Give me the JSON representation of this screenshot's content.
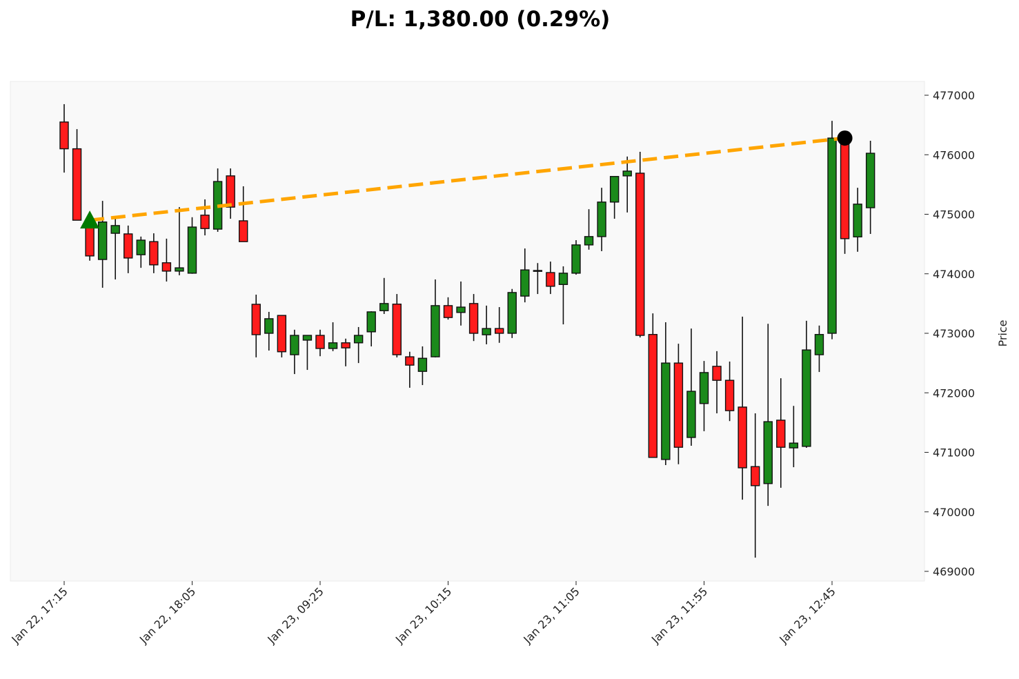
{
  "chart_data": {
    "type": "candlestick",
    "title": "P/L: 1,380.00 (0.29%)",
    "ylabel": "Price",
    "xlabel": "",
    "ylim": [
      469000,
      477000
    ],
    "yticks": [
      "469000",
      "470000",
      "471000",
      "472000",
      "473000",
      "474000",
      "475000",
      "476000",
      "477000"
    ],
    "xtick_labels": [
      {
        "index": 0,
        "label": "Jan 22, 17:15"
      },
      {
        "index": 10,
        "label": "Jan 22, 18:05"
      },
      {
        "index": 20,
        "label": "Jan 23, 09:25"
      },
      {
        "index": 30,
        "label": "Jan 23, 10:15"
      },
      {
        "index": 40,
        "label": "Jan 23, 11:05"
      },
      {
        "index": 50,
        "label": "Jan 23, 11:55"
      },
      {
        "index": 60,
        "label": "Jan 23, 12:45"
      }
    ],
    "ohlc_fields": [
      "open",
      "high",
      "low",
      "close"
    ],
    "candles": [
      [
        476550,
        476850,
        475700,
        476100
      ],
      [
        476100,
        476430,
        474900,
        474900
      ],
      [
        474850,
        474950,
        474220,
        474300
      ],
      [
        474240,
        475225,
        473765,
        474870
      ],
      [
        474680,
        474925,
        473905,
        474810
      ],
      [
        474670,
        474810,
        474010,
        474265
      ],
      [
        474320,
        474625,
        474100,
        474565
      ],
      [
        474540,
        474680,
        474010,
        474150
      ],
      [
        474185,
        474590,
        473870,
        474045
      ],
      [
        474045,
        475120,
        473975,
        474100
      ],
      [
        474010,
        474950,
        474000,
        474785
      ],
      [
        474985,
        475250,
        474645,
        474760
      ],
      [
        474750,
        475770,
        474705,
        475550
      ],
      [
        475645,
        475770,
        474925,
        475120
      ],
      [
        474890,
        475470,
        474540,
        474540
      ],
      [
        473487,
        473650,
        472595,
        472977
      ],
      [
        473000,
        473360,
        472710,
        473245
      ],
      [
        473300,
        473300,
        472595,
        472690
      ],
      [
        472640,
        473060,
        472315,
        472965
      ],
      [
        472885,
        472965,
        472385,
        472965
      ],
      [
        472965,
        473060,
        472615,
        472745
      ],
      [
        472745,
        473185,
        472700,
        472840
      ],
      [
        472840,
        472910,
        472445,
        472755
      ],
      [
        472840,
        473105,
        472500,
        472965
      ],
      [
        473025,
        473370,
        472780,
        473360
      ],
      [
        473380,
        473930,
        473325,
        473500
      ],
      [
        473490,
        473660,
        472595,
        472640
      ],
      [
        472605,
        472690,
        472085,
        472465
      ],
      [
        472360,
        472780,
        472130,
        472580
      ],
      [
        472605,
        473905,
        472595,
        473465
      ],
      [
        473465,
        473605,
        473230,
        473265
      ],
      [
        473350,
        473870,
        473130,
        473440
      ],
      [
        473500,
        473660,
        472870,
        473000
      ],
      [
        472975,
        473465,
        472815,
        473080
      ],
      [
        473080,
        473440,
        472840,
        473000
      ],
      [
        473000,
        473745,
        472920,
        473685
      ],
      [
        473625,
        474425,
        473520,
        474065
      ],
      [
        474055,
        474180,
        473660,
        474055
      ],
      [
        474020,
        474205,
        473660,
        473790
      ],
      [
        473820,
        474125,
        473150,
        474010
      ],
      [
        474010,
        474565,
        473985,
        474485
      ],
      [
        474485,
        475085,
        474405,
        474625
      ],
      [
        474625,
        475445,
        474380,
        475205
      ],
      [
        475205,
        475635,
        474925,
        475635
      ],
      [
        475645,
        475970,
        475030,
        475725
      ],
      [
        475690,
        476050,
        472930,
        472965
      ],
      [
        472980,
        473335,
        470915,
        470915
      ],
      [
        470880,
        473185,
        470785,
        472500
      ],
      [
        472500,
        472825,
        470800,
        471085
      ],
      [
        471250,
        473080,
        471110,
        472025
      ],
      [
        471820,
        472535,
        471355,
        472340
      ],
      [
        472445,
        472700,
        471655,
        472210
      ],
      [
        472210,
        472525,
        471525,
        471700
      ],
      [
        471760,
        473280,
        470205,
        470740
      ],
      [
        470760,
        471655,
        469230,
        470440
      ],
      [
        470475,
        473160,
        470100,
        471515
      ],
      [
        471540,
        472245,
        470405,
        471085
      ],
      [
        471075,
        471780,
        470750,
        471155
      ],
      [
        471100,
        473210,
        471075,
        472720
      ],
      [
        472640,
        473130,
        472350,
        472980
      ],
      [
        473000,
        476570,
        472900,
        476280
      ],
      [
        476280,
        476350,
        474335,
        474590
      ],
      [
        474620,
        475445,
        474370,
        475170
      ],
      [
        475110,
        476235,
        474670,
        476025
      ]
    ],
    "entry": {
      "index": 2,
      "price": 474900,
      "marker": "triangle-up"
    },
    "exit": {
      "index": 61,
      "price": 476280,
      "marker": "circle"
    },
    "trade_line": {
      "style": "dashed"
    },
    "grid": false,
    "colors": {
      "up": "#1b8a1b",
      "down": "#ff1c1c",
      "trade_line": "#ffa500",
      "entry": "#007a00",
      "exit": "#000000",
      "plot_bg": "#f9f9f9"
    }
  }
}
